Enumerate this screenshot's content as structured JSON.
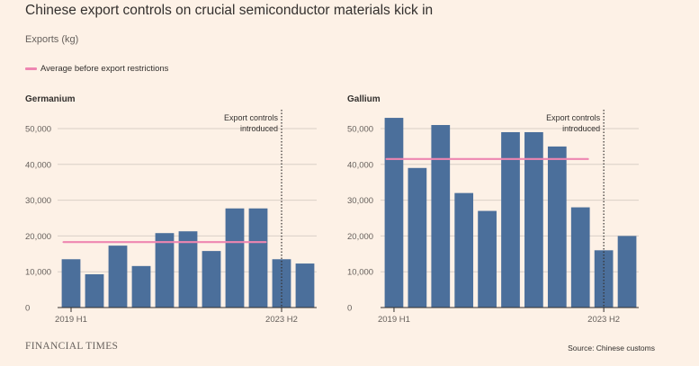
{
  "title": "Chinese export controls on crucial semiconductor materials kick in",
  "subtitle": "Exports (kg)",
  "legend": {
    "label": "Average before export restrictions",
    "color": "#ee86b1"
  },
  "brand": "FINANCIAL TIMES",
  "source": "Source: Chinese customs",
  "colors": {
    "bar": "#4b6f9b",
    "gridline": "#d9d0c7",
    "axis": "#66605c",
    "text": "#66605c"
  },
  "chart_data": [
    {
      "type": "bar",
      "title": "Germanium",
      "ylabel": "Exports (kg)",
      "ylim": [
        0,
        50000
      ],
      "yticks": [
        0,
        10000,
        20000,
        30000,
        40000,
        50000
      ],
      "ytick_labels": [
        "0",
        "10,000",
        "20,000",
        "30,000",
        "40,000",
        "50,000"
      ],
      "x_labels": {
        "first": "2019 H1",
        "last": "2023 H2"
      },
      "values": [
        13500,
        9300,
        17300,
        11600,
        20800,
        21300,
        15800,
        27700,
        27700,
        13500,
        12300
      ],
      "average": 18300,
      "average_span_bars": [
        0,
        8
      ],
      "annotation": {
        "line1": "Export controls",
        "line2": "introduced"
      },
      "annotation_bar_index": 9
    },
    {
      "type": "bar",
      "title": "Gallium",
      "ylabel": "Exports (kg)",
      "ylim": [
        0,
        50000
      ],
      "yticks": [
        0,
        10000,
        20000,
        30000,
        40000,
        50000
      ],
      "ytick_labels": [
        "0",
        "10,000",
        "20,000",
        "30,000",
        "40,000",
        "50,000"
      ],
      "x_labels": {
        "first": "2019 H1",
        "last": "2023 H2"
      },
      "values": [
        53000,
        39000,
        51000,
        32000,
        27000,
        49000,
        49000,
        45000,
        28000,
        16000,
        20000
      ],
      "average": 41500,
      "average_span_bars": [
        0,
        8
      ],
      "annotation": {
        "line1": "Export controls",
        "line2": "introduced"
      },
      "annotation_bar_index": 9
    }
  ]
}
